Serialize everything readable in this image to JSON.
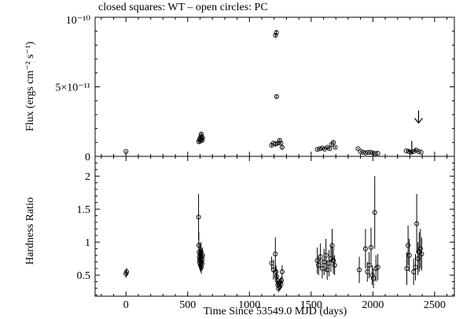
{
  "title": "closed squares: WT – open circles: PC",
  "chart_data": [
    {
      "type": "scatter",
      "panel": "top",
      "ylabel": "Flux (ergs cm⁻² s⁻¹)",
      "xlim": [
        -250,
        2660
      ],
      "ylim": [
        0,
        1e-10
      ],
      "yticks": [
        0,
        5e-11,
        1e-10
      ],
      "ytick_labels": [
        "0",
        "5×10⁻¹¹",
        "10⁻¹⁰"
      ],
      "grid": false,
      "series": [
        {
          "marker": "open-circle",
          "points": [
            [
              0,
              3.5e-12,
              4e-13
            ],
            [
              590,
              1.05e-11,
              1e-12
            ],
            [
              595,
              1.2e-11,
              1.2e-12
            ],
            [
              600,
              1.3e-11,
              1.5e-12
            ],
            [
              603,
              1.1e-11,
              1e-12
            ],
            [
              607,
              1.45e-11,
              1.5e-12
            ],
            [
              610,
              1.6e-11,
              1.5e-12
            ],
            [
              613,
              1.25e-11,
              1.2e-12
            ],
            [
              617,
              1.15e-11,
              1e-12
            ],
            [
              620,
              1.35e-11,
              1.2e-12
            ],
            [
              1180,
              8e-12,
              1e-12
            ],
            [
              1195,
              9.5e-12,
              1e-12
            ],
            [
              1210,
              8.8e-12,
              1.5e-12
            ],
            [
              1212,
              8.7e-11,
              1.5e-12
            ],
            [
              1218,
              8.9e-11,
              2e-12
            ],
            [
              1220,
              4.3e-11,
              1.5e-12
            ],
            [
              1230,
              9.5e-12,
              1.5e-12
            ],
            [
              1245,
              1.15e-11,
              1.5e-12
            ],
            [
              1255,
              9.5e-12,
              1e-12
            ],
            [
              1265,
              6.5e-12,
              1.2e-12
            ],
            [
              1550,
              5e-12,
              6e-13
            ],
            [
              1570,
              5.5e-12,
              6e-13
            ],
            [
              1590,
              6e-12,
              6e-13
            ],
            [
              1610,
              5.2e-12,
              6e-13
            ],
            [
              1630,
              6.5e-12,
              8e-13
            ],
            [
              1650,
              5.5e-12,
              8e-13
            ],
            [
              1665,
              8.5e-12,
              1e-12
            ],
            [
              1680,
              1e-11,
              1.2e-12
            ],
            [
              1695,
              6.5e-12,
              8e-13
            ],
            [
              1880,
              5.5e-12,
              6e-13
            ],
            [
              1900,
              3.5e-12,
              5e-13
            ],
            [
              1920,
              3e-12,
              5e-13
            ],
            [
              1940,
              2.5e-12,
              4e-13
            ],
            [
              1960,
              2.8e-12,
              4e-13
            ],
            [
              1980,
              3e-12,
              4e-13
            ],
            [
              2000,
              2.5e-12,
              4e-13
            ],
            [
              2020,
              2e-12,
              4e-13
            ],
            [
              2040,
              2.2e-12,
              4e-13
            ],
            [
              2270,
              4e-12,
              5e-13
            ],
            [
              2290,
              3.5e-12,
              5e-13
            ],
            [
              2310,
              3e-12,
              4e-13
            ],
            [
              2330,
              3.5e-12,
              4e-13
            ],
            [
              2350,
              4.5e-12,
              5e-13
            ],
            [
              2370,
              3.5e-12,
              4e-13
            ],
            [
              2390,
              3e-12,
              4e-13
            ]
          ]
        }
      ],
      "upper_limits": [
        [
          2315,
          2e-12
        ],
        [
          2370,
          2.4e-11
        ]
      ]
    },
    {
      "type": "scatter",
      "panel": "bottom",
      "xlabel": "Time Since 53549.0 MJD (days)",
      "ylabel": "Hardness Ratio",
      "xlim": [
        -250,
        2660
      ],
      "ylim": [
        0.18,
        2.3
      ],
      "xticks": [
        0,
        500,
        1000,
        1500,
        2000,
        2500
      ],
      "xtick_labels": [
        "0",
        "500",
        "1000",
        "1500",
        "2000",
        "2500"
      ],
      "yticks": [
        0.5,
        1,
        1.5,
        2
      ],
      "ytick_labels": [
        "0.5",
        "1",
        "1.5",
        "2"
      ],
      "grid": false,
      "series": [
        {
          "marker": "open-circle",
          "points": [
            [
              0,
              0.52,
              0.06
            ],
            [
              5,
              0.55,
              0.06
            ],
            [
              588,
              1.38,
              0.35
            ],
            [
              590,
              0.95,
              0.2
            ],
            [
              592,
              0.85,
              0.15
            ],
            [
              594,
              0.78,
              0.12
            ],
            [
              596,
              0.72,
              0.1
            ],
            [
              598,
              0.68,
              0.1
            ],
            [
              600,
              0.75,
              0.12
            ],
            [
              602,
              0.82,
              0.15
            ],
            [
              604,
              0.65,
              0.1
            ],
            [
              606,
              0.72,
              0.1
            ],
            [
              608,
              0.85,
              0.15
            ],
            [
              610,
              0.62,
              0.1
            ],
            [
              612,
              0.7,
              0.1
            ],
            [
              614,
              0.78,
              0.12
            ],
            [
              616,
              0.67,
              0.1
            ],
            [
              618,
              0.74,
              0.1
            ],
            [
              620,
              0.8,
              0.12
            ],
            [
              1180,
              0.68,
              0.1
            ],
            [
              1195,
              0.58,
              0.15
            ],
            [
              1210,
              0.82,
              0.25
            ],
            [
              1215,
              0.55,
              0.1
            ],
            [
              1220,
              0.48,
              0.12
            ],
            [
              1225,
              0.42,
              0.08
            ],
            [
              1230,
              0.35,
              0.05
            ],
            [
              1235,
              0.3,
              0.06
            ],
            [
              1240,
              0.38,
              0.05
            ],
            [
              1245,
              0.32,
              0.06
            ],
            [
              1250,
              0.4,
              0.06
            ],
            [
              1255,
              0.36,
              0.05
            ],
            [
              1260,
              0.42,
              0.06
            ],
            [
              1265,
              0.55,
              0.1
            ],
            [
              1550,
              0.72,
              0.2
            ],
            [
              1560,
              0.65,
              0.15
            ],
            [
              1575,
              0.78,
              0.2
            ],
            [
              1590,
              0.6,
              0.15
            ],
            [
              1605,
              0.7,
              0.2
            ],
            [
              1620,
              0.8,
              0.25
            ],
            [
              1630,
              0.58,
              0.15
            ],
            [
              1645,
              0.68,
              0.2
            ],
            [
              1660,
              0.75,
              0.2
            ],
            [
              1670,
              0.95,
              0.25
            ],
            [
              1680,
              0.72,
              0.2
            ],
            [
              1690,
              0.65,
              0.15
            ],
            [
              1890,
              0.58,
              0.2
            ],
            [
              1940,
              0.9,
              0.3
            ],
            [
              1955,
              0.55,
              0.15
            ],
            [
              1970,
              0.65,
              0.2
            ],
            [
              1985,
              0.92,
              0.3
            ],
            [
              1995,
              0.5,
              0.15
            ],
            [
              2005,
              0.45,
              0.15
            ],
            [
              2015,
              1.45,
              0.55
            ],
            [
              2025,
              0.6,
              0.2
            ],
            [
              2040,
              0.62,
              0.2
            ],
            [
              2275,
              0.6,
              0.25
            ],
            [
              2285,
              0.95,
              0.3
            ],
            [
              2295,
              0.8,
              0.25
            ],
            [
              2330,
              0.55,
              0.2
            ],
            [
              2345,
              0.62,
              0.2
            ],
            [
              2355,
              1.28,
              0.45
            ],
            [
              2365,
              0.75,
              0.25
            ],
            [
              2375,
              0.85,
              0.3
            ],
            [
              2385,
              0.9,
              0.3
            ],
            [
              2395,
              0.82,
              0.25
            ]
          ]
        }
      ]
    }
  ]
}
